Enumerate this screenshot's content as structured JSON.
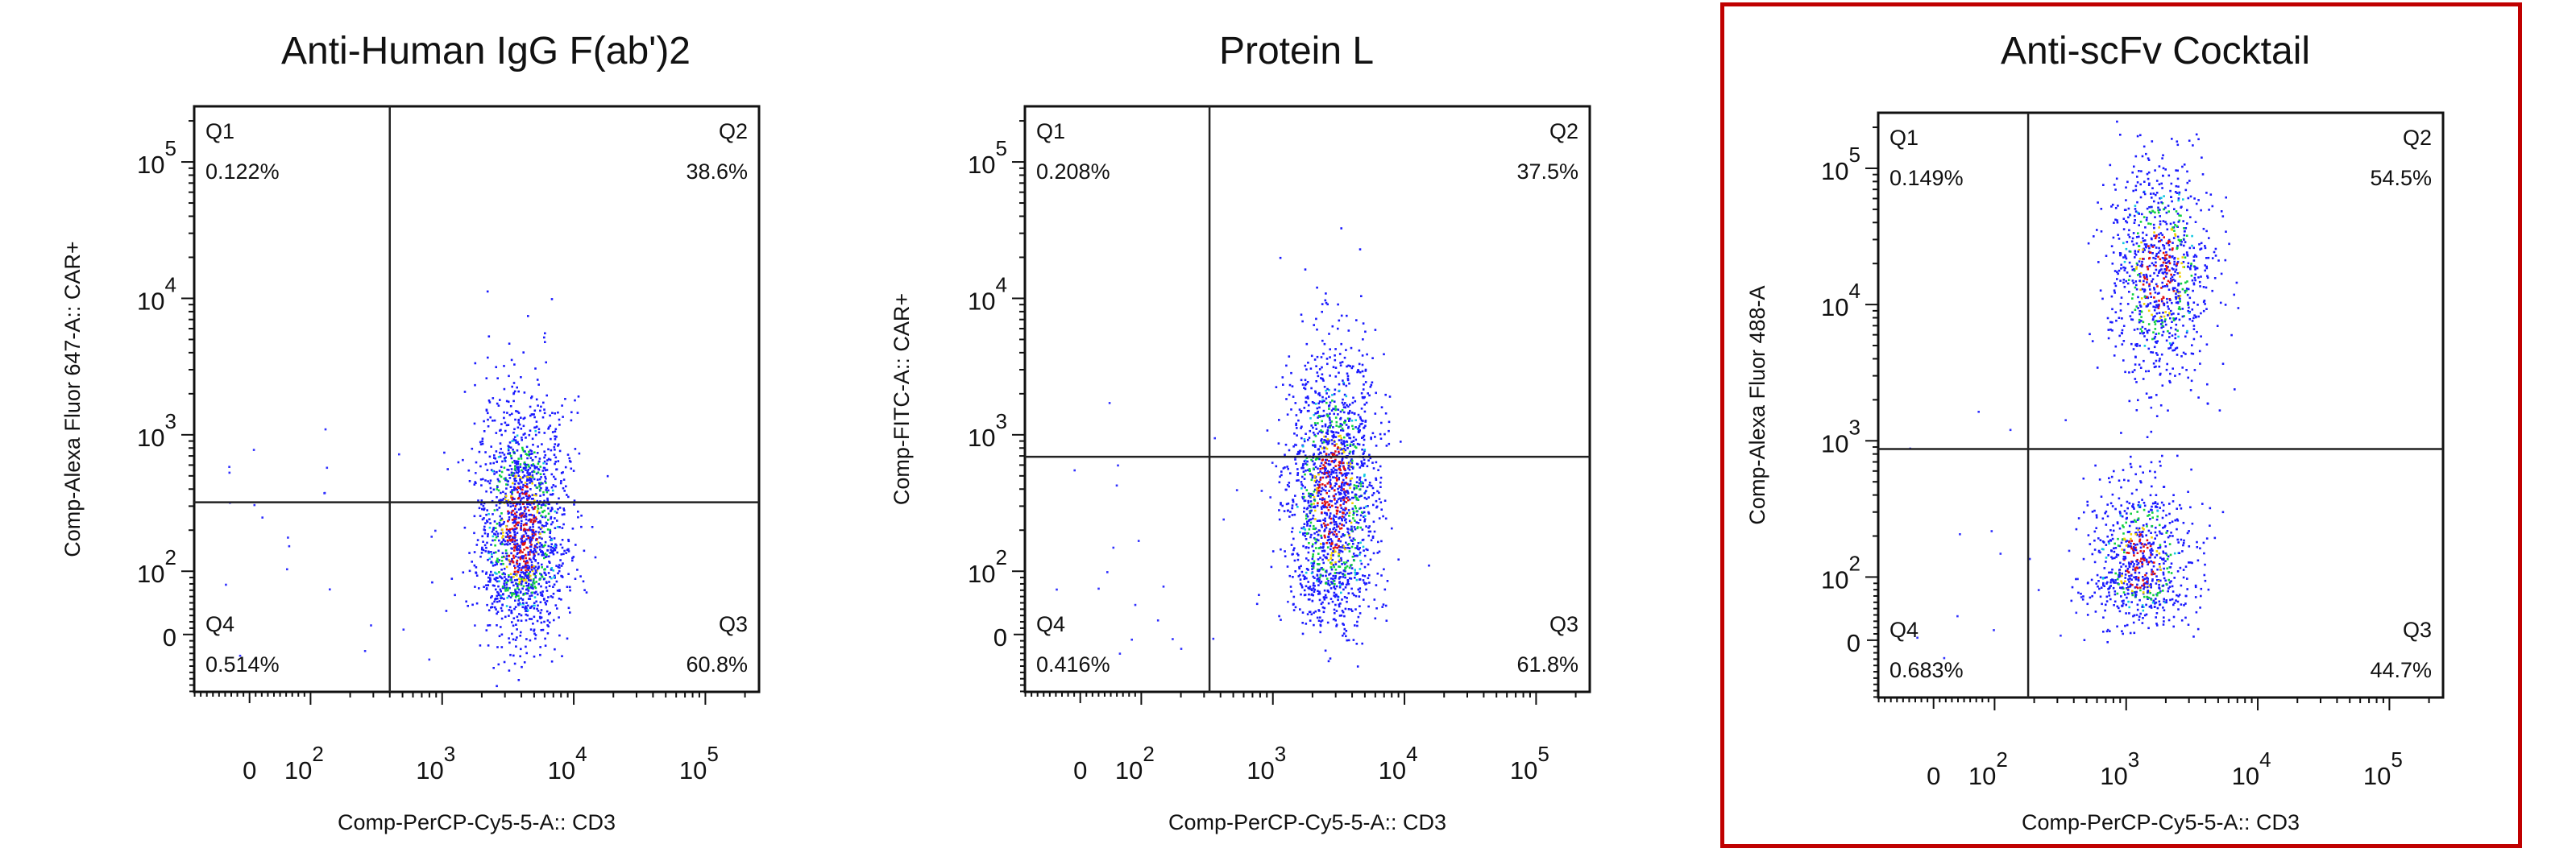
{
  "chart_data": [
    {
      "type": "scatter",
      "title": "Anti-Human IgG F(ab')2",
      "xlabel": "Comp-PerCP-Cy5-5-A:: CD3",
      "ylabel": "Comp-Alexa Fluor 647-A:: CAR+",
      "x_scale": "biexponential",
      "y_scale": "biexponential",
      "x_ticks": [
        {
          "base": "0",
          "exp": ""
        },
        {
          "base": "10",
          "exp": "2"
        },
        {
          "base": "10",
          "exp": "3"
        },
        {
          "base": "10",
          "exp": "4"
        },
        {
          "base": "10",
          "exp": "5"
        }
      ],
      "y_ticks": [
        {
          "base": "0",
          "exp": ""
        },
        {
          "base": "10",
          "exp": "2"
        },
        {
          "base": "10",
          "exp": "3"
        },
        {
          "base": "10",
          "exp": "4"
        },
        {
          "base": "10",
          "exp": "5"
        }
      ],
      "gate": {
        "x": 400,
        "y": 320
      },
      "quadrants": [
        {
          "label": "Q1",
          "value": "0.122%"
        },
        {
          "label": "Q2",
          "value": "38.6%"
        },
        {
          "label": "Q3",
          "value": "60.8%"
        },
        {
          "label": "Q4",
          "value": "0.514%"
        }
      ],
      "populations": [
        {
          "x_log_mean": 3.6,
          "x_log_sd": 0.17,
          "y_log_mean": 2.3,
          "y_log_sd": 0.5,
          "fraction": 1.0
        }
      ],
      "highlighted": false
    },
    {
      "type": "scatter",
      "title": "Protein L",
      "xlabel": "Comp-PerCP-Cy5-5-A:: CD3",
      "ylabel": "Comp-FITC-A:: CAR+",
      "x_scale": "biexponential",
      "y_scale": "biexponential",
      "x_ticks": [
        {
          "base": "0",
          "exp": ""
        },
        {
          "base": "10",
          "exp": "2"
        },
        {
          "base": "10",
          "exp": "3"
        },
        {
          "base": "10",
          "exp": "4"
        },
        {
          "base": "10",
          "exp": "5"
        }
      ],
      "y_ticks": [
        {
          "base": "0",
          "exp": ""
        },
        {
          "base": "10",
          "exp": "2"
        },
        {
          "base": "10",
          "exp": "3"
        },
        {
          "base": "10",
          "exp": "4"
        },
        {
          "base": "10",
          "exp": "5"
        }
      ],
      "gate": {
        "x": 330,
        "y": 690
      },
      "quadrants": [
        {
          "label": "Q1",
          "value": "0.208%"
        },
        {
          "label": "Q2",
          "value": "37.5%"
        },
        {
          "label": "Q3",
          "value": "61.8%"
        },
        {
          "label": "Q4",
          "value": "0.416%"
        }
      ],
      "populations": [
        {
          "x_log_mean": 3.45,
          "x_log_sd": 0.17,
          "y_log_mean": 2.55,
          "y_log_sd": 0.55,
          "fraction": 1.0
        }
      ],
      "highlighted": false
    },
    {
      "type": "scatter",
      "title": "Anti-scFv Cocktail",
      "xlabel": "Comp-PerCP-Cy5-5-A:: CD3",
      "ylabel": "Comp-Alexa Fluor 488-A",
      "x_scale": "biexponential",
      "y_scale": "biexponential",
      "x_ticks": [
        {
          "base": "0",
          "exp": ""
        },
        {
          "base": "10",
          "exp": "2"
        },
        {
          "base": "10",
          "exp": "3"
        },
        {
          "base": "10",
          "exp": "4"
        },
        {
          "base": "10",
          "exp": "5"
        }
      ],
      "y_ticks": [
        {
          "base": "0",
          "exp": ""
        },
        {
          "base": "10",
          "exp": "2"
        },
        {
          "base": "10",
          "exp": "3"
        },
        {
          "base": "10",
          "exp": "4"
        },
        {
          "base": "10",
          "exp": "5"
        }
      ],
      "gate": {
        "x": 180,
        "y": 870
      },
      "quadrants": [
        {
          "label": "Q1",
          "value": "0.149%"
        },
        {
          "label": "Q2",
          "value": "54.5%"
        },
        {
          "label": "Q3",
          "value": "44.7%"
        },
        {
          "label": "Q4",
          "value": "0.683%"
        }
      ],
      "populations": [
        {
          "x_log_mean": 3.25,
          "x_log_sd": 0.2,
          "y_log_mean": 4.25,
          "y_log_sd": 0.4,
          "fraction": 0.55
        },
        {
          "x_log_mean": 3.1,
          "x_log_sd": 0.19,
          "y_log_mean": 2.1,
          "y_log_sd": 0.32,
          "fraction": 0.45
        }
      ],
      "highlighted": true
    }
  ]
}
